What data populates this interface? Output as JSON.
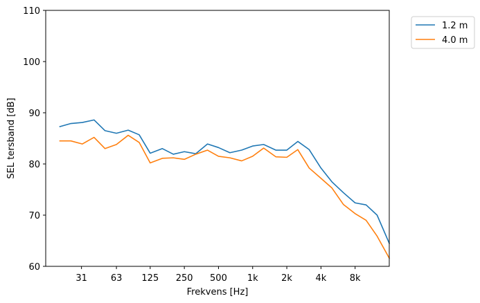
{
  "chart_data": {
    "type": "line",
    "xlabel": "Frekvens [Hz]",
    "ylabel": "SEL tersband [dB]",
    "x_scale": "log",
    "xlim": [
      15,
      16000
    ],
    "ylim": [
      60,
      110
    ],
    "x_ticks": [
      {
        "value": 31,
        "label": "31"
      },
      {
        "value": 63,
        "label": "63"
      },
      {
        "value": 125,
        "label": "125"
      },
      {
        "value": 250,
        "label": "250"
      },
      {
        "value": 500,
        "label": "500"
      },
      {
        "value": 1000,
        "label": "1k"
      },
      {
        "value": 2000,
        "label": "2k"
      },
      {
        "value": 4000,
        "label": "4k"
      },
      {
        "value": 8000,
        "label": "8k"
      }
    ],
    "y_ticks": [
      60,
      70,
      80,
      90,
      100,
      110
    ],
    "grid": false,
    "legend_position": "outside-top-right",
    "x": [
      20,
      25,
      31.5,
      40,
      50,
      63,
      80,
      100,
      125,
      160,
      200,
      250,
      315,
      400,
      500,
      630,
      800,
      1000,
      1250,
      1600,
      2000,
      2500,
      3150,
      4000,
      5000,
      6300,
      8000,
      10000,
      12500,
      16000
    ],
    "series": [
      {
        "name": "1.2 m",
        "color": "#1f77b4",
        "values": [
          87.3,
          87.9,
          88.1,
          88.6,
          86.5,
          86.0,
          86.6,
          85.7,
          82.1,
          83.0,
          81.9,
          82.4,
          82.0,
          83.9,
          83.2,
          82.2,
          82.7,
          83.5,
          83.8,
          82.7,
          82.7,
          84.4,
          82.8,
          79.2,
          76.5,
          74.4,
          72.4,
          72.0,
          70.0,
          64.5
        ]
      },
      {
        "name": "4.0 m",
        "color": "#ff7f0e",
        "values": [
          84.5,
          84.5,
          83.9,
          85.2,
          83.0,
          83.8,
          85.6,
          84.2,
          80.2,
          81.1,
          81.2,
          80.9,
          81.9,
          82.7,
          81.5,
          81.2,
          80.6,
          81.5,
          83.1,
          81.4,
          81.3,
          82.8,
          79.2,
          77.2,
          75.3,
          72.1,
          70.3,
          69.0,
          65.9,
          61.6
        ]
      }
    ]
  }
}
